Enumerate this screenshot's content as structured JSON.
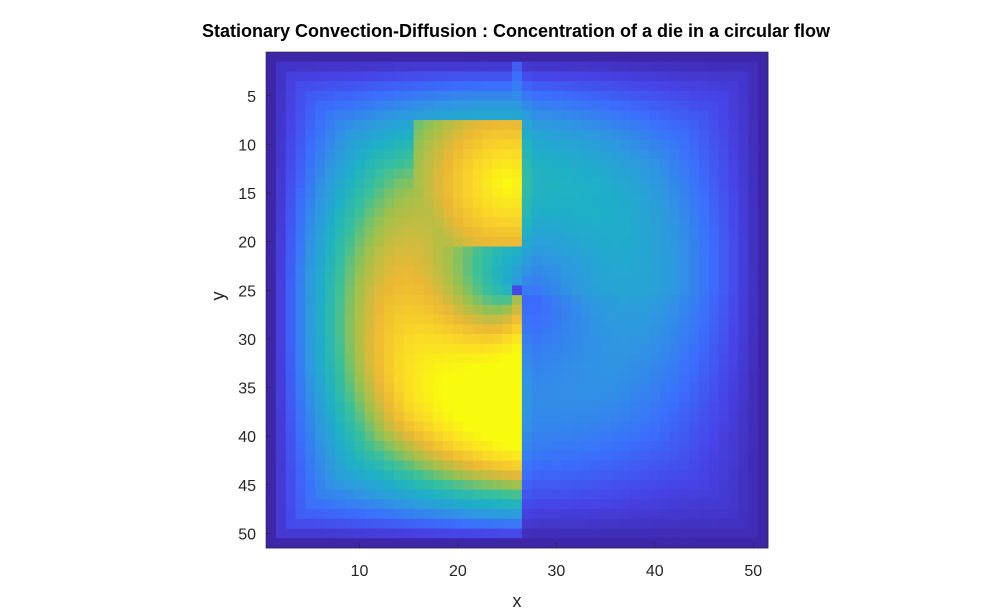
{
  "chart_data": {
    "type": "heatmap",
    "title": "Stationary Convection-Diffusion : Concentration of a die in a circular flow",
    "xlabel": "x",
    "ylabel": "y",
    "grid_size": [
      51,
      51
    ],
    "xlim": [
      0.5,
      51.5
    ],
    "ylim": [
      0.5,
      51.5
    ],
    "y_axis_direction": "reversed",
    "xticks": [
      10,
      20,
      30,
      40,
      50
    ],
    "yticks": [
      5,
      10,
      15,
      20,
      25,
      30,
      35,
      40,
      45,
      50
    ],
    "colormap": "parula",
    "colormap_stops": [
      "#3e26a8",
      "#4743e6",
      "#3b6ffc",
      "#2f97e1",
      "#1eb0c6",
      "#38c09b",
      "#9cc14e",
      "#ecb834",
      "#fbdb26",
      "#f9fb0e"
    ],
    "value_range": [
      0,
      1
    ],
    "features": {
      "source_region": {
        "x": [
          16,
          26
        ],
        "y": [
          8,
          20
        ],
        "peak": {
          "x": 25,
          "y": 14,
          "value": 1.0
        }
      },
      "sharp_edge_at_x": 26.5,
      "low_point": {
        "x": 26,
        "y": 25,
        "value": 0.12
      },
      "flow_center": {
        "x": 26,
        "y": 25
      },
      "flow_direction": "counterclockwise (upward flow on right side is blocked; dye advected left and downward)"
    },
    "grid": false,
    "colorbar": false
  }
}
